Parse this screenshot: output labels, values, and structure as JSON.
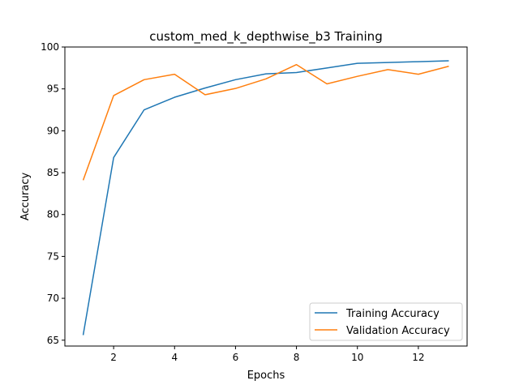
{
  "chart_data": {
    "type": "line",
    "title": "custom_med_k_depthwise_b3 Training",
    "xlabel": "Epochs",
    "ylabel": "Accuracy",
    "xlim": [
      0.4,
      13.6
    ],
    "ylim": [
      64.3,
      100
    ],
    "xticks": [
      2,
      4,
      6,
      8,
      10,
      12
    ],
    "yticks": [
      65,
      70,
      75,
      80,
      85,
      90,
      95,
      100
    ],
    "grid": false,
    "legend_position": "lower-right",
    "x": [
      1,
      2,
      3,
      4,
      5,
      6,
      7,
      8,
      9,
      10,
      11,
      12,
      13
    ],
    "series": [
      {
        "name": "Training Accuracy",
        "color": "#1f77b4",
        "values": [
          65.6,
          86.8,
          92.5,
          94.0,
          95.1,
          96.1,
          96.8,
          96.95,
          97.5,
          98.05,
          98.15,
          98.25,
          98.35
        ]
      },
      {
        "name": "Validation Accuracy",
        "color": "#ff7f0e",
        "values": [
          84.1,
          94.2,
          96.1,
          96.75,
          94.3,
          95.05,
          96.2,
          97.9,
          95.6,
          96.5,
          97.3,
          96.75,
          97.7
        ]
      }
    ]
  }
}
